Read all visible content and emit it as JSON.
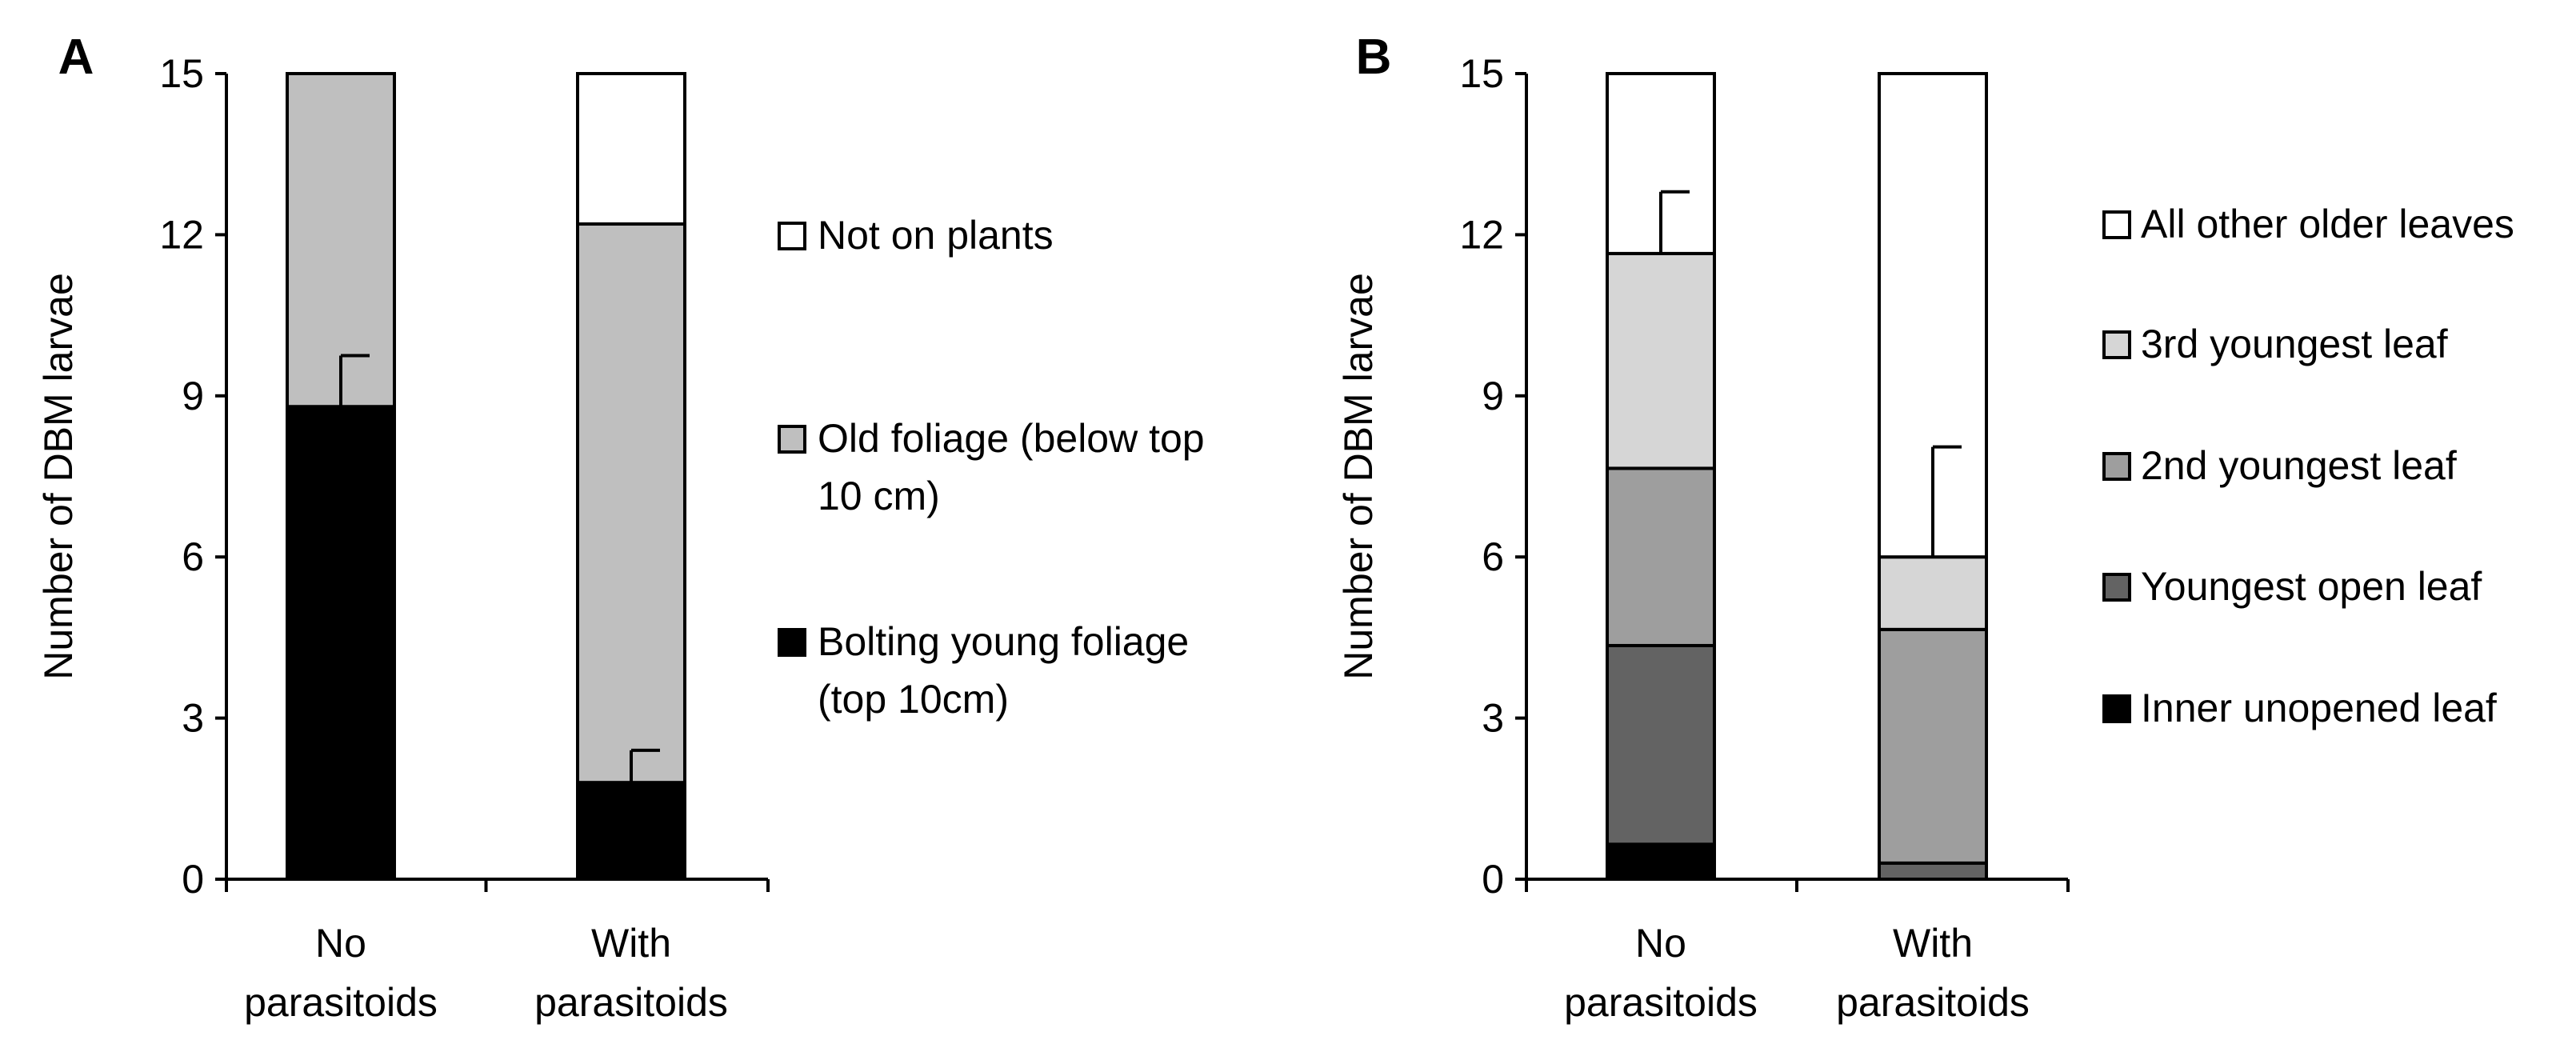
{
  "chart_data": [
    {
      "panel_label": "A",
      "type": "bar",
      "stacked": true,
      "ylabel": "Number of DBM larvae",
      "ylim": [
        0,
        15
      ],
      "yticks": [
        "0",
        "3",
        "6",
        "9",
        "12",
        "15"
      ],
      "ytick_values": [
        0,
        3,
        6,
        9,
        12,
        15
      ],
      "categories": [
        {
          "line1": "No",
          "line2": "parasitoids"
        },
        {
          "line1": "With",
          "line2": "parasitoids"
        }
      ],
      "series": [
        {
          "name": "Bolting young foliage (top 10cm)",
          "legend_lines": [
            "Bolting young foliage",
            "(top 10cm)"
          ],
          "color": "#000000",
          "values": [
            8.8,
            1.8
          ]
        },
        {
          "name": "Old foliage (below top 10 cm)",
          "legend_lines": [
            "Old foliage (below top",
            "10 cm)"
          ],
          "color": "#bfbfbf",
          "values": [
            6.2,
            10.4
          ]
        },
        {
          "name": "Not on plants",
          "legend_lines": [
            "Not on plants"
          ],
          "color": "#ffffff",
          "values": [
            0.0,
            2.8
          ]
        }
      ],
      "error_bars": [
        {
          "category": 0,
          "at": 8.8,
          "upper": 9.75
        },
        {
          "category": 1,
          "at": 1.8,
          "upper": 2.4
        }
      ]
    },
    {
      "panel_label": "B",
      "type": "bar",
      "stacked": true,
      "ylabel": "Number of DBM larvae",
      "ylim": [
        0,
        15
      ],
      "yticks": [
        "0",
        "3",
        "6",
        "9",
        "12",
        "15"
      ],
      "ytick_values": [
        0,
        3,
        6,
        9,
        12,
        15
      ],
      "categories": [
        {
          "line1": "No",
          "line2": "parasitoids"
        },
        {
          "line1": "With",
          "line2": "parasitoids"
        }
      ],
      "series": [
        {
          "name": "Inner unopened leaf",
          "legend_lines": [
            "Inner unopened leaf"
          ],
          "color": "#000000",
          "values": [
            0.65,
            0.0
          ]
        },
        {
          "name": "Youngest open leaf",
          "legend_lines": [
            "Youngest open leaf"
          ],
          "color": "#636363",
          "values": [
            3.7,
            0.3
          ]
        },
        {
          "name": "2nd youngest leaf",
          "legend_lines": [
            "2nd youngest leaf"
          ],
          "color": "#9e9e9e",
          "values": [
            3.3,
            4.35
          ]
        },
        {
          "name": "3rd youngest leaf",
          "legend_lines": [
            "3rd youngest leaf"
          ],
          "color": "#d6d6d6",
          "values": [
            4.0,
            1.35
          ]
        },
        {
          "name": "All other older leaves",
          "legend_lines": [
            "All other older leaves"
          ],
          "color": "#ffffff",
          "values": [
            3.35,
            9.0
          ]
        }
      ],
      "error_bars": [
        {
          "category": 0,
          "at": 11.65,
          "upper": 12.8
        },
        {
          "category": 1,
          "at": 6.0,
          "upper": 8.05
        }
      ]
    }
  ]
}
